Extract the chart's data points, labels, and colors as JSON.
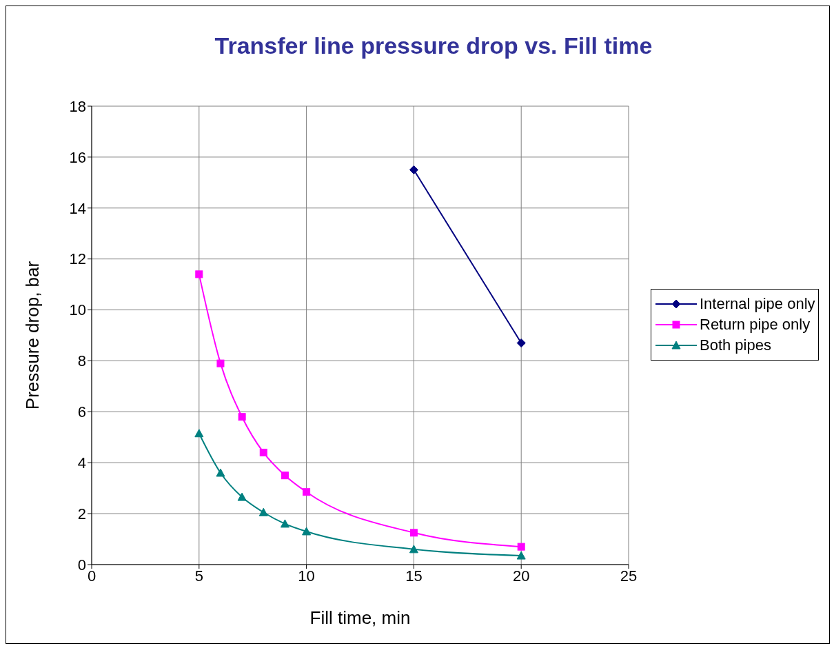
{
  "chart_data": {
    "type": "line",
    "title": "Transfer line pressure drop vs. Fill time",
    "xlabel": "Fill time, min",
    "ylabel": "Pressure drop, bar",
    "series": [
      {
        "name": "Internal pipe only",
        "color": "#000080",
        "marker": "diamond",
        "x": [
          15,
          20
        ],
        "values": [
          15.5,
          8.7
        ]
      },
      {
        "name": "Return pipe only",
        "color": "#ff00ff",
        "marker": "square",
        "x": [
          5,
          6,
          7,
          8,
          9,
          10,
          15,
          20
        ],
        "values": [
          11.4,
          7.9,
          5.8,
          4.4,
          3.5,
          2.85,
          1.25,
          0.7
        ]
      },
      {
        "name": "Both pipes",
        "color": "#008080",
        "marker": "triangle",
        "x": [
          5,
          6,
          7,
          8,
          9,
          10,
          15,
          20
        ],
        "values": [
          5.15,
          3.6,
          2.65,
          2.05,
          1.6,
          1.3,
          0.6,
          0.35
        ]
      }
    ],
    "xlim": [
      0,
      25
    ],
    "xticks": [
      0,
      5,
      10,
      15,
      20,
      25
    ],
    "ylim": [
      0,
      18
    ],
    "yticks": [
      0,
      2,
      4,
      6,
      8,
      10,
      12,
      14,
      16,
      18
    ],
    "grid": true,
    "legend": "right"
  }
}
